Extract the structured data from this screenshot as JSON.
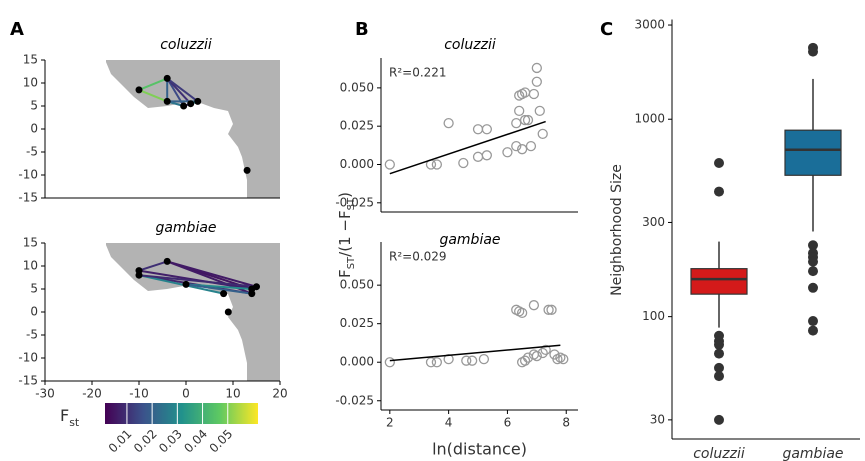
{
  "chart_data": [
    {
      "type": "map",
      "label": "A",
      "title": "coluzzii",
      "xlim": [
        -30,
        20
      ],
      "ylim": [
        -15,
        15
      ],
      "yticks": [
        15,
        10,
        5,
        0,
        -5,
        -10,
        -15
      ],
      "points": {
        "x": [
          -10,
          -4,
          -4,
          -0.5,
          1,
          2.5,
          13
        ],
        "y": [
          8.5,
          11,
          6,
          5,
          5.5,
          6,
          -9
        ]
      },
      "edges": [
        {
          "x": [
            -10,
            -4
          ],
          "y": [
            8.5,
            11
          ],
          "value": 0.045
        },
        {
          "x": [
            -4,
            -4
          ],
          "y": [
            11,
            6
          ],
          "value": 0.02
        },
        {
          "x": [
            -4,
            -0.5
          ],
          "y": [
            11,
            5
          ],
          "value": 0.015
        },
        {
          "x": [
            -4,
            1
          ],
          "y": [
            11,
            5.5
          ],
          "value": 0.01
        },
        {
          "x": [
            -4,
            2.5
          ],
          "y": [
            11,
            6
          ],
          "value": 0.012
        },
        {
          "x": [
            -4,
            -0.5
          ],
          "y": [
            6,
            5
          ],
          "value": 0.025
        },
        {
          "x": [
            -10,
            -4
          ],
          "y": [
            8.5,
            6
          ],
          "value": 0.05
        },
        {
          "x": [
            -0.5,
            2.5
          ],
          "y": [
            5,
            6
          ],
          "value": 0.01
        },
        {
          "x": [
            -4,
            2.5
          ],
          "y": [
            6,
            6
          ],
          "value": 0.02
        },
        {
          "x": [
            1,
            2.5
          ],
          "y": [
            5.5,
            6
          ],
          "value": 0.03
        }
      ]
    },
    {
      "type": "map",
      "title": "gambiae",
      "xlim": [
        -30,
        20
      ],
      "ylim": [
        -15,
        15
      ],
      "yticks": [
        15,
        10,
        5,
        0,
        -5,
        -10,
        -15
      ],
      "xticks": [
        -30,
        -20,
        -10,
        0,
        10,
        20
      ],
      "points": {
        "x": [
          -10,
          -10,
          -4,
          0,
          8,
          9,
          14,
          14,
          15
        ],
        "y": [
          9,
          8,
          11,
          6,
          4,
          0,
          5,
          4,
          5.5
        ]
      },
      "edges": [
        {
          "x": [
            -4,
            14
          ],
          "y": [
            11,
            5
          ],
          "value": 0.005
        },
        {
          "x": [
            -4,
            14
          ],
          "y": [
            11,
            4
          ],
          "value": 0.006
        },
        {
          "x": [
            -10,
            14
          ],
          "y": [
            9,
            5
          ],
          "value": 0.007
        },
        {
          "x": [
            -10,
            14
          ],
          "y": [
            8,
            4
          ],
          "value": 0.008
        },
        {
          "x": [
            -10,
            -4
          ],
          "y": [
            9,
            11
          ],
          "value": 0.01
        },
        {
          "x": [
            0,
            14
          ],
          "y": [
            6,
            5
          ],
          "value": 0.03
        },
        {
          "x": [
            -10,
            8
          ],
          "y": [
            8,
            4
          ],
          "value": 0.028
        },
        {
          "x": [
            0,
            14
          ],
          "y": [
            6,
            4
          ],
          "value": 0.02
        },
        {
          "x": [
            -4,
            15
          ],
          "y": [
            11,
            5.5
          ],
          "value": 0.006
        },
        {
          "x": [
            -10,
            15
          ],
          "y": [
            8,
            5.5
          ],
          "value": 0.009
        }
      ],
      "colorbar": {
        "label": "F",
        "label_sub": "st",
        "lim": [
          0.0013,
          0.062
        ],
        "ticks": [
          0.01,
          0.02,
          0.03,
          0.04,
          0.05
        ]
      }
    },
    {
      "type": "scatter",
      "label": "B",
      "title": "coluzzii",
      "annotation": "R²=0.221",
      "xlim": [
        1.7,
        8.4
      ],
      "ylim": [
        -0.031,
        0.0695
      ],
      "yticks": [
        {
          "value": 0.05,
          "label": "0.050"
        },
        0.025,
        {
          "value": 0,
          "label": "0.000"
        },
        -0.025
      ],
      "ylabel": [
        {
          "text": "F"
        },
        {
          "text": "ST",
          "sub": true
        },
        {
          "text": "/(1 −"
        },
        {
          "text": "F"
        },
        {
          "text": "ST",
          "sub": true
        },
        {
          "text": ")"
        }
      ],
      "x": [
        2,
        3.4,
        3.6,
        4,
        4.5,
        5,
        5,
        5.3,
        5.3,
        6,
        6.3,
        6.3,
        6.4,
        6.5,
        6.6,
        6.5,
        6.6,
        6.7,
        6.8,
        6.9,
        7,
        7,
        7.1,
        7.2,
        6.4
      ],
      "y": [
        0,
        0,
        0,
        0.027,
        0.001,
        0.023,
        0.005,
        0.023,
        0.006,
        0.008,
        0.027,
        0.012,
        0.045,
        0.046,
        0.047,
        0.01,
        0.029,
        0.029,
        0.012,
        0.046,
        0.054,
        0.063,
        0.035,
        0.02,
        0.035
      ],
      "fit": {
        "x": [
          2,
          7.3
        ],
        "y": [
          -0.006,
          0.028
        ]
      }
    },
    {
      "type": "scatter",
      "title": "gambiae",
      "annotation": "R²=0.029",
      "xlim": [
        1.7,
        8.4
      ],
      "ylim": [
        -0.031,
        0.078
      ],
      "yticks": [
        {
          "value": 0.05,
          "label": "0.050"
        },
        0.025,
        {
          "value": 0,
          "label": "0.000"
        },
        -0.025
      ],
      "xticks": [
        2,
        4,
        6,
        8
      ],
      "xlabel": "ln(distance)",
      "x": [
        2,
        3.4,
        3.6,
        4,
        4.6,
        4.8,
        5.2,
        6.3,
        6.4,
        6.5,
        6.6,
        6.7,
        6.9,
        6.9,
        7,
        7.2,
        7.3,
        7.4,
        7.5,
        7.6,
        7.7,
        7.8,
        7.9,
        6.5
      ],
      "y": [
        0,
        0,
        0,
        0.002,
        0.001,
        0.001,
        0.002,
        0.034,
        0.033,
        0.032,
        0.001,
        0.003,
        0.037,
        0.005,
        0.004,
        0.006,
        0.008,
        0.034,
        0.034,
        0.005,
        0.002,
        0.003,
        0.002,
        0
      ],
      "fit": {
        "x": [
          2,
          7.8
        ],
        "y": [
          0.001,
          0.011
        ]
      }
    },
    {
      "type": "box",
      "label": "C",
      "ylabel": "Neighborhood Size",
      "log": true,
      "ylim": [
        24,
        3200
      ],
      "yticks": [
        30,
        100,
        300,
        1000,
        3000
      ],
      "categories": [
        "coluzzii",
        "gambiae"
      ],
      "boxes": [
        {
          "color": "#d41a1a",
          "whislo": 88,
          "q1": 130,
          "med": 155,
          "q3": 175,
          "whishi": 240,
          "fliers": [
            600,
            430,
            80,
            75,
            72,
            65,
            55,
            50,
            30
          ]
        },
        {
          "color": "#1a6e99",
          "whislo": 270,
          "q1": 520,
          "med": 700,
          "q3": 880,
          "whishi": 1600,
          "fliers": [
            2300,
            2200,
            230,
            210,
            200,
            190,
            170,
            140,
            95,
            85
          ]
        }
      ]
    }
  ]
}
